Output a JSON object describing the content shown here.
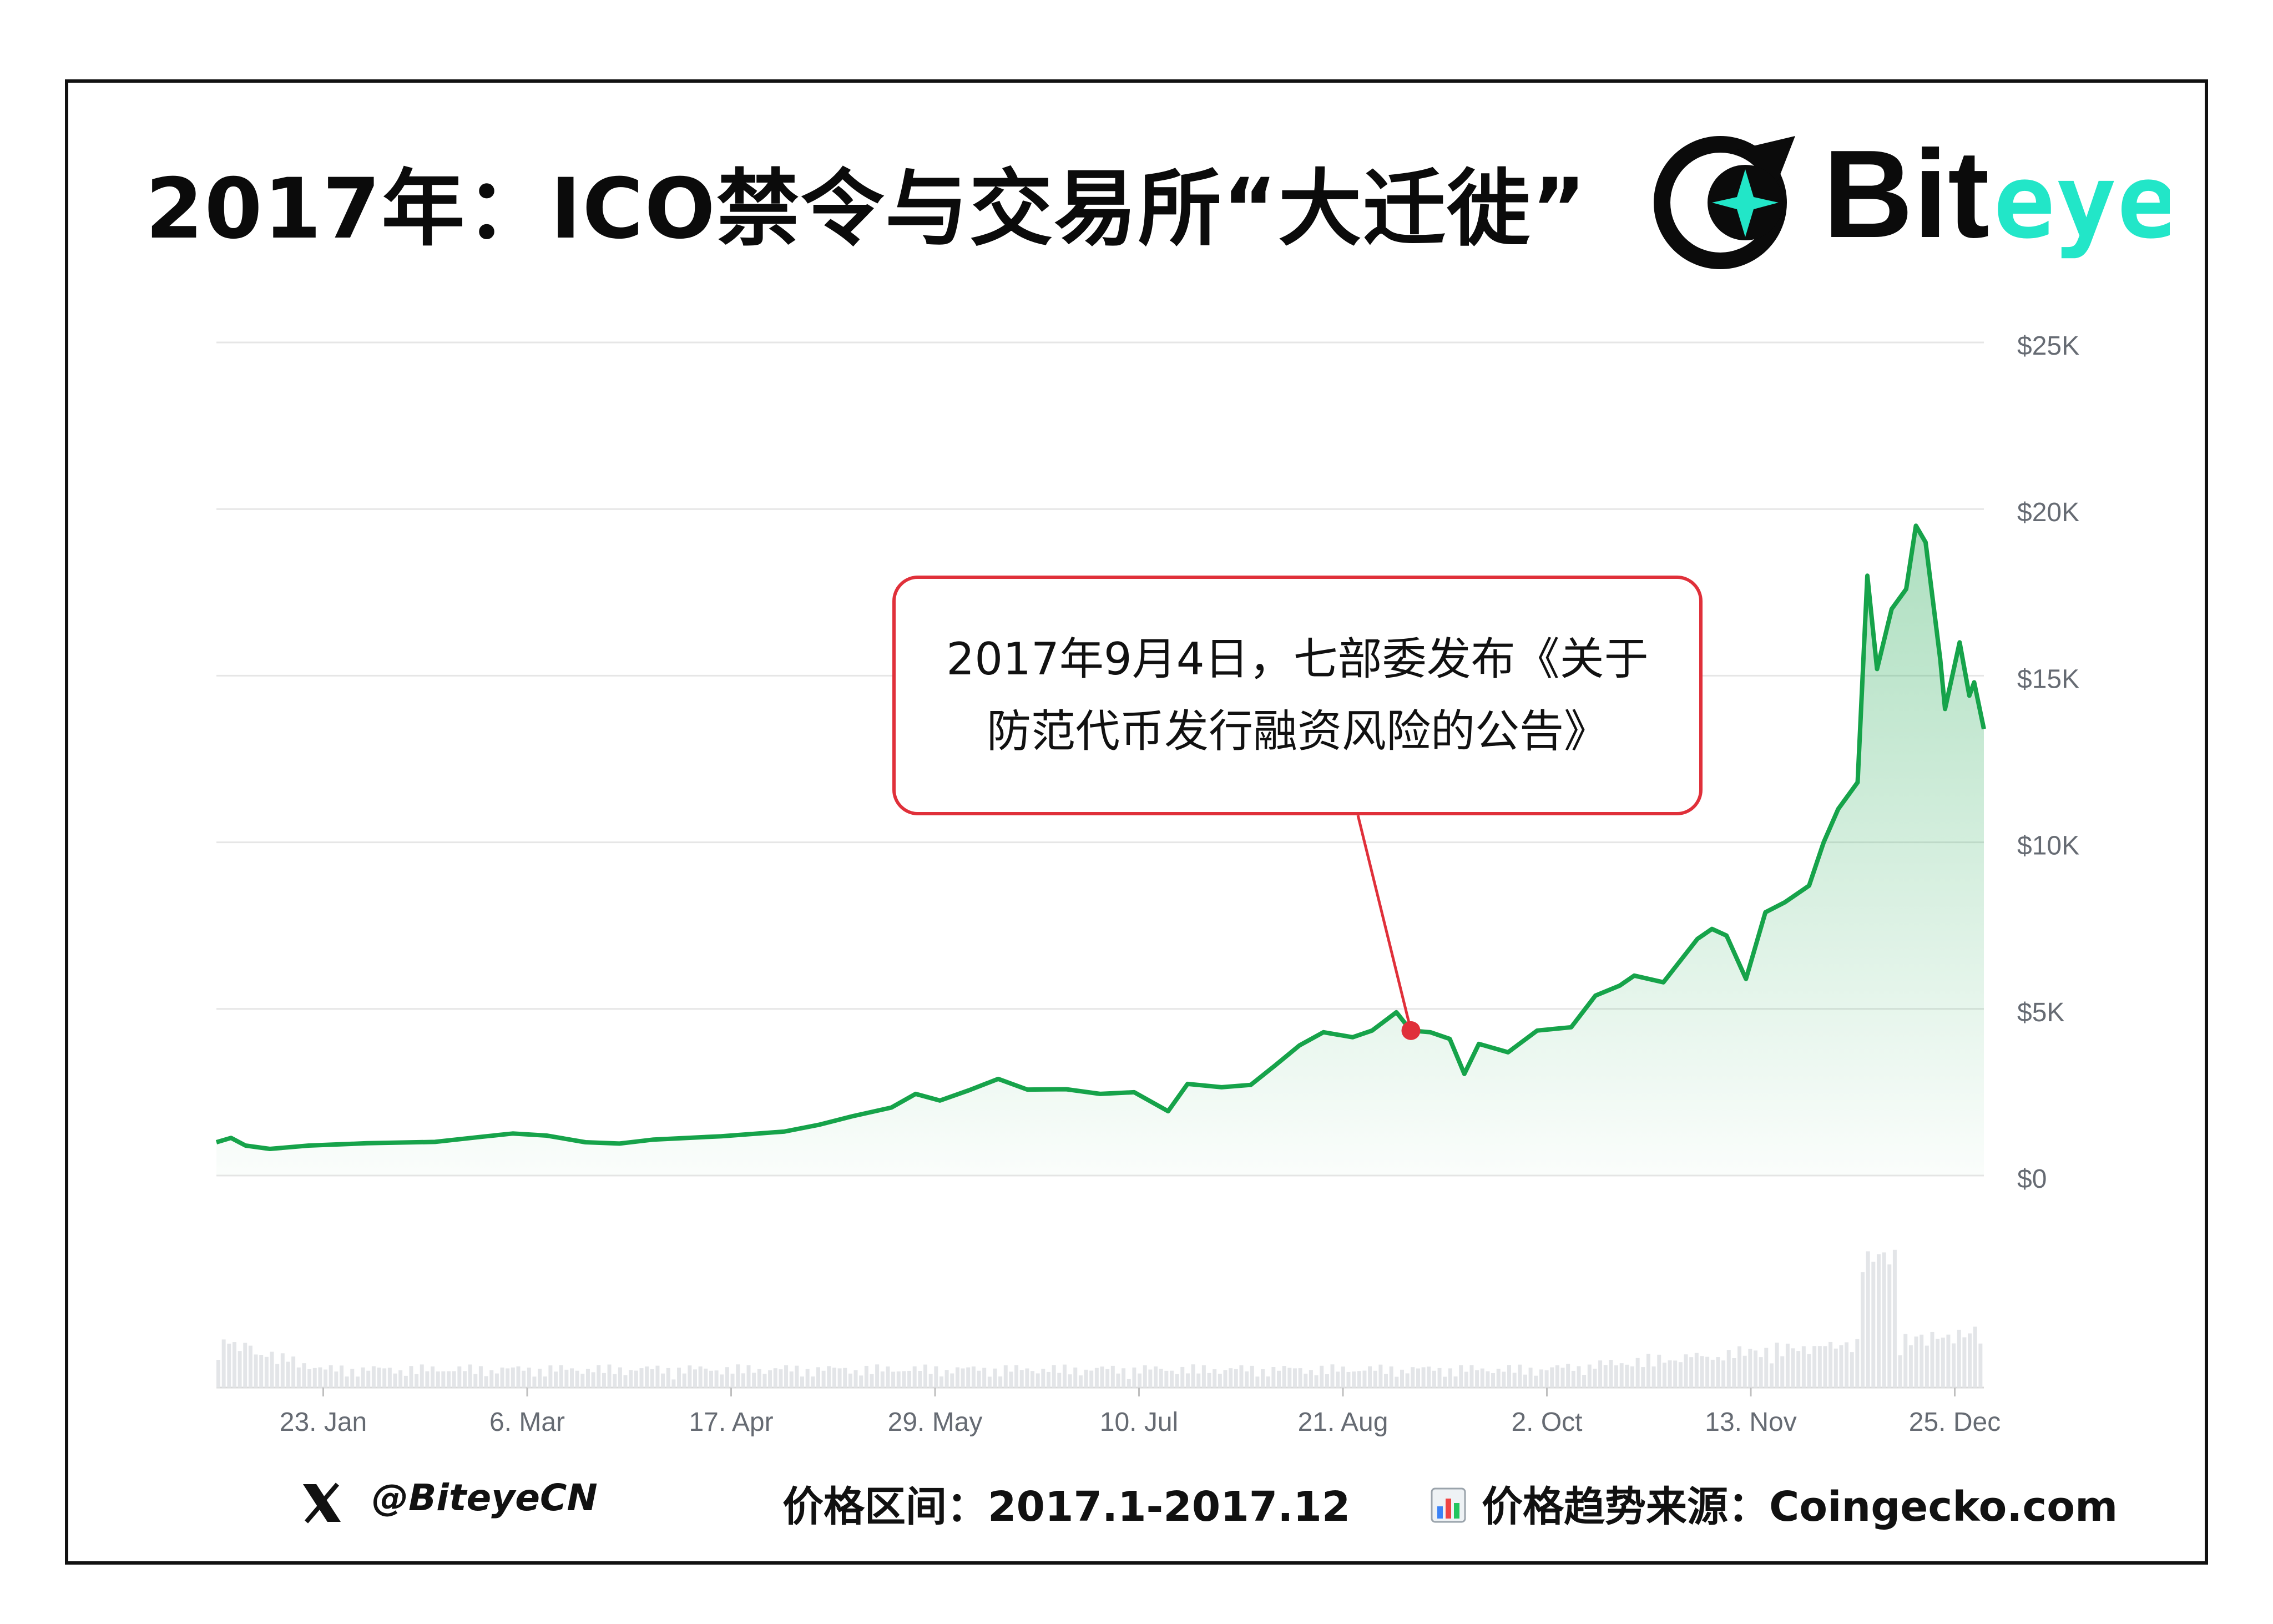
{
  "title": "2017年：ICO禁令与交易所“大迁徙”",
  "brand": {
    "name": "Bit",
    "name_accent": "eye",
    "colors": {
      "dark": "#0b0b0b",
      "accent": "#22e6c8"
    },
    "icon": "biteye-moon-star-logo"
  },
  "annotation": {
    "line1": "2017年9月4日，七部委发布《关于",
    "line2": "防范代币发行融资风险的公告》",
    "date": "2017-09-04",
    "value": 4350,
    "border_color": "#e0303a"
  },
  "footer": {
    "handle": "@BiteyeCN",
    "handle_icon": "x-logo-icon",
    "range": "价格区间：2017.1-2017.12",
    "source": "价格趋势来源：Coingecko.com",
    "source_icon": "bar-chart-icon"
  },
  "chart_data": {
    "type": "area",
    "title": "",
    "xlabel": "",
    "ylabel": "",
    "x_range": [
      "2017-01-01",
      "2017-12-31"
    ],
    "ylim": [
      0,
      25000
    ],
    "y_ticks": [
      {
        "value": 0,
        "label": "$0"
      },
      {
        "value": 5000,
        "label": "$5K"
      },
      {
        "value": 10000,
        "label": "$10K"
      },
      {
        "value": 15000,
        "label": "$15K"
      },
      {
        "value": 20000,
        "label": "$20K"
      },
      {
        "value": 25000,
        "label": "$25K"
      }
    ],
    "x_ticks": [
      {
        "date": "2017-01-23",
        "label": "23. Jan"
      },
      {
        "date": "2017-03-06",
        "label": "6. Mar"
      },
      {
        "date": "2017-04-17",
        "label": "17. Apr"
      },
      {
        "date": "2017-05-29",
        "label": "29. May"
      },
      {
        "date": "2017-07-10",
        "label": "10. Jul"
      },
      {
        "date": "2017-08-21",
        "label": "21. Aug"
      },
      {
        "date": "2017-10-02",
        "label": "2. Oct"
      },
      {
        "date": "2017-11-13",
        "label": "13. Nov"
      },
      {
        "date": "2017-12-25",
        "label": "25. Dec"
      }
    ],
    "grid": true,
    "line_color": "#16a34a",
    "series": [
      {
        "points": [
          [
            "2017-01-01",
            1000
          ],
          [
            "2017-01-04",
            1130
          ],
          [
            "2017-01-07",
            900
          ],
          [
            "2017-01-12",
            800
          ],
          [
            "2017-01-20",
            900
          ],
          [
            "2017-02-01",
            970
          ],
          [
            "2017-02-15",
            1010
          ],
          [
            "2017-02-25",
            1170
          ],
          [
            "2017-03-03",
            1260
          ],
          [
            "2017-03-10",
            1200
          ],
          [
            "2017-03-18",
            1000
          ],
          [
            "2017-03-25",
            960
          ],
          [
            "2017-04-01",
            1080
          ],
          [
            "2017-04-15",
            1180
          ],
          [
            "2017-04-28",
            1320
          ],
          [
            "2017-05-05",
            1520
          ],
          [
            "2017-05-12",
            1780
          ],
          [
            "2017-05-20",
            2040
          ],
          [
            "2017-05-25",
            2450
          ],
          [
            "2017-05-30",
            2250
          ],
          [
            "2017-06-05",
            2560
          ],
          [
            "2017-06-11",
            2900
          ],
          [
            "2017-06-17",
            2580
          ],
          [
            "2017-06-25",
            2590
          ],
          [
            "2017-07-02",
            2450
          ],
          [
            "2017-07-09",
            2500
          ],
          [
            "2017-07-16",
            1930
          ],
          [
            "2017-07-20",
            2750
          ],
          [
            "2017-07-27",
            2650
          ],
          [
            "2017-08-02",
            2720
          ],
          [
            "2017-08-07",
            3300
          ],
          [
            "2017-08-12",
            3900
          ],
          [
            "2017-08-17",
            4300
          ],
          [
            "2017-08-23",
            4150
          ],
          [
            "2017-08-27",
            4350
          ],
          [
            "2017-09-01",
            4900
          ],
          [
            "2017-09-04",
            4350
          ],
          [
            "2017-09-08",
            4300
          ],
          [
            "2017-09-12",
            4100
          ],
          [
            "2017-09-15",
            3050
          ],
          [
            "2017-09-18",
            3950
          ],
          [
            "2017-09-24",
            3700
          ],
          [
            "2017-09-30",
            4350
          ],
          [
            "2017-10-07",
            4450
          ],
          [
            "2017-10-12",
            5400
          ],
          [
            "2017-10-17",
            5700
          ],
          [
            "2017-10-20",
            6000
          ],
          [
            "2017-10-26",
            5800
          ],
          [
            "2017-11-02",
            7100
          ],
          [
            "2017-11-05",
            7400
          ],
          [
            "2017-11-08",
            7200
          ],
          [
            "2017-11-12",
            5900
          ],
          [
            "2017-11-16",
            7900
          ],
          [
            "2017-11-20",
            8200
          ],
          [
            "2017-11-25",
            8700
          ],
          [
            "2017-11-28",
            10000
          ],
          [
            "2017-12-01",
            11000
          ],
          [
            "2017-12-05",
            11800
          ],
          [
            "2017-12-07",
            18000
          ],
          [
            "2017-12-09",
            15200
          ],
          [
            "2017-12-12",
            17000
          ],
          [
            "2017-12-15",
            17600
          ],
          [
            "2017-12-17",
            19500
          ],
          [
            "2017-12-19",
            19000
          ],
          [
            "2017-12-22",
            15500
          ],
          [
            "2017-12-23",
            14000
          ],
          [
            "2017-12-26",
            16000
          ],
          [
            "2017-12-28",
            14400
          ],
          [
            "2017-12-29",
            14800
          ],
          [
            "2017-12-31",
            13400
          ]
        ]
      }
    ]
  }
}
